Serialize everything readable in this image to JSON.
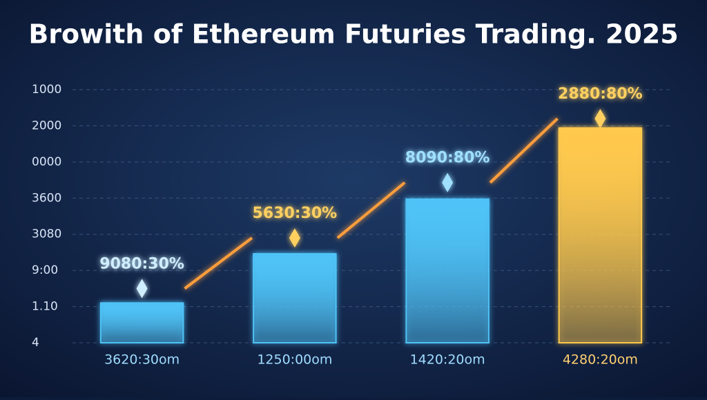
{
  "chart_data": {
    "type": "bar_line",
    "title": "Browith of Ethereum Futuries Trading. 2025",
    "categories": [
      "3620:30om",
      "1250:00om",
      "1420:20om",
      "4280:20om"
    ],
    "bars": {
      "values": [
        1.1,
        2.46,
        3.97,
        5.94
      ],
      "colors": [
        "#4fc3f7",
        "#4fc3f7",
        "#4fc3f7",
        "#ffc94d"
      ]
    },
    "line": {
      "values": [
        1.5,
        2.9,
        4.43,
        6.2
      ],
      "color": "#ff9e3d",
      "point_labels": [
        "9080:30%",
        "5630:30%",
        "8090:80%",
        "2880:80%"
      ],
      "label_colors": [
        "#cfeeff",
        "#ffd060",
        "#9fe0ff",
        "#ffd060"
      ]
    },
    "category_label_colors": [
      "#9fdcff",
      "#9fdcff",
      "#9fdcff",
      "#ffd070"
    ],
    "ylim": [
      0,
      7
    ],
    "yticks": [
      {
        "value": 0,
        "label": "4"
      },
      {
        "value": 1,
        "label": "1.10"
      },
      {
        "value": 2,
        "label": "9:00"
      },
      {
        "value": 3,
        "label": "3080"
      },
      {
        "value": 4,
        "label": "3600"
      },
      {
        "value": 5,
        "label": "0000"
      },
      {
        "value": 6,
        "label": "2000"
      },
      {
        "value": 7,
        "label": "1000"
      }
    ],
    "grid": true
  }
}
